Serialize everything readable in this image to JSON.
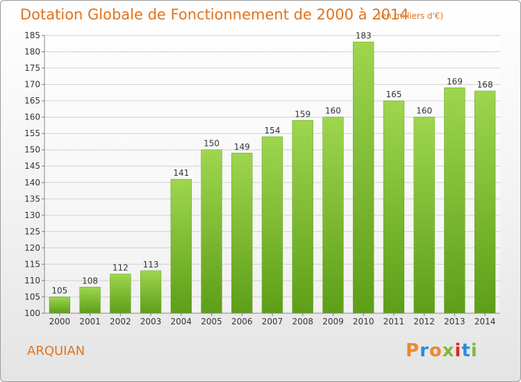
{
  "header": {
    "title": "Dotation Globale de Fonctionnement de 2000 à 2014",
    "subtitle": "(en milliers d'€)"
  },
  "footer": {
    "commune": "ARQUIAN",
    "brand": "Proxiti",
    "brand_colors": [
      "#f0862a",
      "#2b8ed8",
      "#f0862a",
      "#80b93a",
      "#d9272e",
      "#2b8ed8",
      "#80b93a"
    ]
  },
  "chart_data": {
    "type": "bar",
    "categories": [
      "2000",
      "2001",
      "2002",
      "2003",
      "2004",
      "2005",
      "2006",
      "2007",
      "2008",
      "2009",
      "2010",
      "2011",
      "2012",
      "2013",
      "2014"
    ],
    "values": [
      105,
      108,
      112,
      113,
      141,
      150,
      149,
      154,
      159,
      160,
      183,
      165,
      160,
      169,
      168
    ],
    "ylim": [
      100,
      185
    ],
    "yticks": [
      100,
      105,
      110,
      115,
      120,
      125,
      130,
      135,
      140,
      145,
      150,
      155,
      160,
      165,
      170,
      175,
      180,
      185
    ],
    "grid": true,
    "bar_color": "#7cbf2c",
    "bar_color_dark": "#5e9e18"
  }
}
